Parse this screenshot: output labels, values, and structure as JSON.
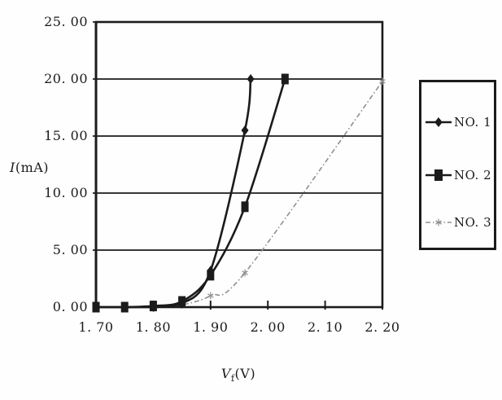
{
  "figure": {
    "background": "#fefefe",
    "ink_color": "#1b1b1b",
    "series3_color": "#8f8f8f"
  },
  "axes": {
    "y_title_italic": "I",
    "y_title_rest": "(mA)",
    "x_title_italic": "V",
    "x_title_sub": "f",
    "x_title_rest": "(V)"
  },
  "chart_data": {
    "type": "line",
    "title": "",
    "xlabel": "Vf(V)",
    "ylabel": "I(mA)",
    "xlim": [
      1.7,
      2.2
    ],
    "ylim": [
      0,
      25
    ],
    "grid": "horizontal",
    "legend_position": "right",
    "x_ticks": {
      "values": [
        1.7,
        1.8,
        1.9,
        2.0,
        2.1,
        2.2
      ],
      "labels": [
        "1. 70",
        "1. 80",
        "1. 90",
        "2. 00",
        "2. 10",
        "2. 20"
      ]
    },
    "y_ticks": {
      "values": [
        0,
        5,
        10,
        15,
        20,
        25
      ],
      "labels": [
        "0. 00",
        "5. 00",
        "10. 00",
        "15. 00",
        "20. 00",
        "25. 00"
      ]
    },
    "series": [
      {
        "name": "NO. 1",
        "marker": "diamond",
        "line_style": "solid",
        "color": "#1b1b1b",
        "points": [
          [
            1.7,
            0.0
          ],
          [
            1.75,
            0.0
          ],
          [
            1.8,
            0.0
          ],
          [
            1.85,
            0.3
          ],
          [
            1.9,
            3.2
          ],
          [
            1.96,
            15.5
          ],
          [
            1.97,
            20.0
          ]
        ]
      },
      {
        "name": "NO. 2",
        "marker": "square",
        "line_style": "solid",
        "color": "#1b1b1b",
        "points": [
          [
            1.7,
            0.0
          ],
          [
            1.75,
            0.0
          ],
          [
            1.8,
            0.1
          ],
          [
            1.85,
            0.5
          ],
          [
            1.9,
            2.8
          ],
          [
            1.96,
            8.8
          ],
          [
            2.03,
            20.0
          ]
        ]
      },
      {
        "name": "NO. 3",
        "marker": "asterisk",
        "line_style": "dashdot",
        "color": "#8f8f8f",
        "points": [
          [
            1.7,
            0.0
          ],
          [
            1.75,
            0.0
          ],
          [
            1.8,
            0.0
          ],
          [
            1.85,
            0.2
          ],
          [
            1.9,
            1.0
          ],
          [
            1.96,
            3.0
          ],
          [
            2.2,
            19.8
          ]
        ]
      }
    ]
  }
}
